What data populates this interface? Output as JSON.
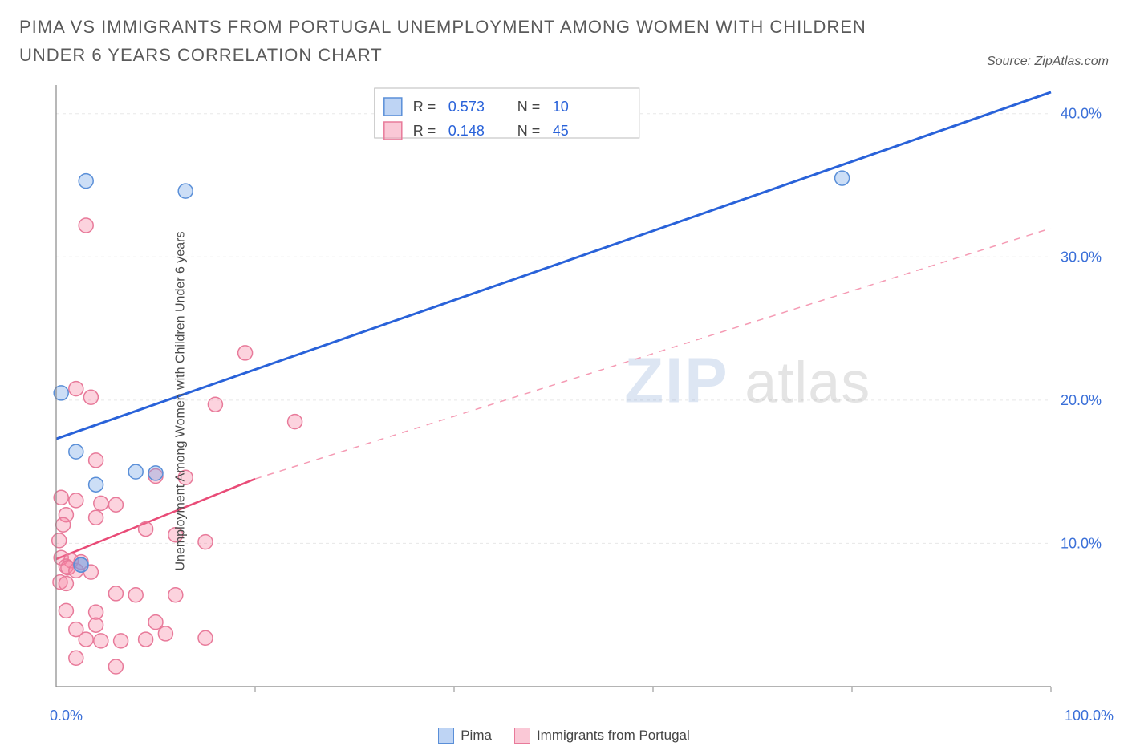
{
  "header": {
    "title": "PIMA VS IMMIGRANTS FROM PORTUGAL UNEMPLOYMENT AMONG WOMEN WITH CHILDREN UNDER 6 YEARS CORRELATION CHART",
    "source": "Source: ZipAtlas.com"
  },
  "chart": {
    "type": "scatter",
    "ylabel": "Unemployment Among Women with Children Under 6 years",
    "xlim": [
      0,
      100
    ],
    "ylim": [
      0,
      42
    ],
    "yticks": [
      10,
      20,
      30,
      40
    ],
    "ytick_labels": [
      "10.0%",
      "20.0%",
      "30.0%",
      "40.0%"
    ],
    "x_end_labels": [
      "0.0%",
      "100.0%"
    ],
    "x_minor_ticks": [
      20,
      40,
      60,
      80
    ],
    "background_color": "#ffffff",
    "grid_color": "#e8e8e8",
    "axis_color": "#888888",
    "marker_radius": 9,
    "series": {
      "pima": {
        "label": "Pima",
        "fill": "rgba(110,160,230,0.35)",
        "stroke": "#5a8fd8",
        "points": [
          [
            0.5,
            20.5
          ],
          [
            3,
            35.3
          ],
          [
            13,
            34.6
          ],
          [
            2,
            16.4
          ],
          [
            8,
            15.0
          ],
          [
            10,
            14.9
          ],
          [
            4,
            14.1
          ],
          [
            2.5,
            8.5
          ],
          [
            2.5,
            8.5
          ],
          [
            79,
            35.5
          ]
        ],
        "trend": {
          "x1": 0,
          "y1": 17.3,
          "x2": 100,
          "y2": 41.5,
          "color": "#2962d9",
          "width": 3
        },
        "R": "0.573",
        "N": "10"
      },
      "portugal": {
        "label": "Immigrants from Portugal",
        "fill": "rgba(245,130,160,0.35)",
        "stroke": "#e87a9a",
        "points": [
          [
            3,
            32.2
          ],
          [
            2,
            20.8
          ],
          [
            3.5,
            20.2
          ],
          [
            16,
            19.7
          ],
          [
            19,
            23.3
          ],
          [
            4,
            15.8
          ],
          [
            10,
            14.7
          ],
          [
            13,
            14.6
          ],
          [
            24,
            18.5
          ],
          [
            0.5,
            13.2
          ],
          [
            2,
            13.0
          ],
          [
            4.5,
            12.8
          ],
          [
            6,
            12.7
          ],
          [
            1,
            12.0
          ],
          [
            4,
            11.8
          ],
          [
            0.7,
            11.3
          ],
          [
            9,
            11.0
          ],
          [
            12,
            10.6
          ],
          [
            15,
            10.1
          ],
          [
            0.5,
            9.0
          ],
          [
            1.5,
            8.8
          ],
          [
            2.5,
            8.7
          ],
          [
            1.0,
            8.4
          ],
          [
            1.2,
            8.3
          ],
          [
            2.0,
            8.1
          ],
          [
            3.5,
            8.0
          ],
          [
            0.4,
            7.3
          ],
          [
            1.0,
            7.2
          ],
          [
            6,
            6.5
          ],
          [
            8,
            6.4
          ],
          [
            12,
            6.4
          ],
          [
            4,
            5.2
          ],
          [
            2,
            4.0
          ],
          [
            3,
            3.3
          ],
          [
            4.5,
            3.2
          ],
          [
            6.5,
            3.2
          ],
          [
            9,
            3.3
          ],
          [
            11,
            3.7
          ],
          [
            15,
            3.4
          ],
          [
            6,
            1.4
          ],
          [
            2,
            2.0
          ],
          [
            4,
            4.3
          ],
          [
            10,
            4.5
          ],
          [
            1,
            5.3
          ],
          [
            0.3,
            10.2
          ]
        ],
        "trend_solid": {
          "x1": 0,
          "y1": 8.9,
          "x2": 20,
          "y2": 14.5,
          "color": "#e94b77",
          "width": 2.5
        },
        "trend_dash": {
          "x1": 20,
          "y1": 14.5,
          "x2": 100,
          "y2": 32.0,
          "color": "#f59bb4",
          "width": 1.5
        },
        "R": "0.148",
        "N": "45"
      }
    },
    "stats_box": {
      "rows": [
        {
          "swatch": "blue",
          "R_label": "R =",
          "R": "0.573",
          "N_label": "N =",
          "N": "10"
        },
        {
          "swatch": "pink",
          "R_label": "R =",
          "R": "0.148",
          "N_label": "N =",
          "N": "45"
        }
      ]
    },
    "legend": {
      "items": [
        {
          "swatch": "blue",
          "label": "Pima"
        },
        {
          "swatch": "pink",
          "label": "Immigrants from Portugal"
        }
      ]
    },
    "watermark": {
      "part1": "ZIP",
      "part2": "atlas"
    }
  }
}
